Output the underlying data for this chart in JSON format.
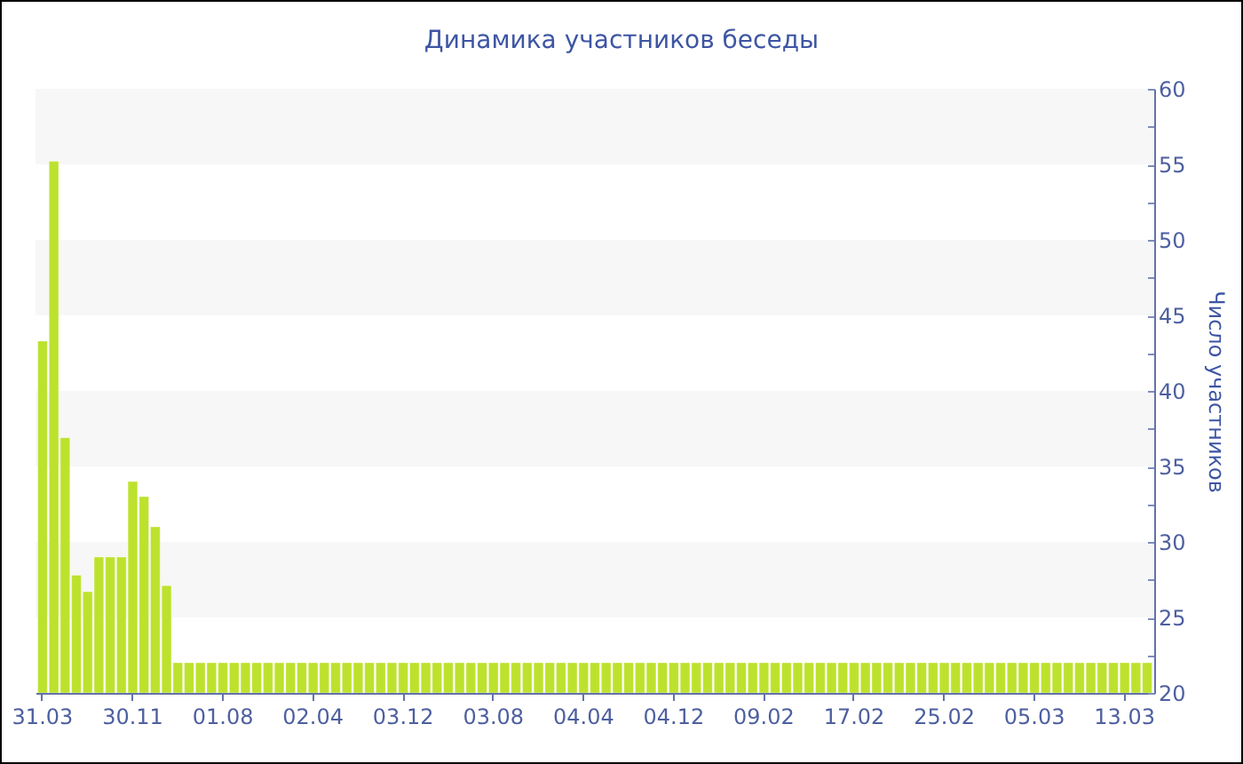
{
  "chart_data": {
    "type": "bar",
    "title": "Динамика участников беседы",
    "ylabel": "Число участников",
    "categories": [
      "31.03",
      null,
      null,
      null,
      null,
      null,
      null,
      null,
      "30.11",
      null,
      null,
      null,
      null,
      null,
      null,
      null,
      "01.08",
      null,
      null,
      null,
      null,
      null,
      null,
      null,
      "02.04",
      null,
      null,
      null,
      null,
      null,
      null,
      null,
      "03.12",
      null,
      null,
      null,
      null,
      null,
      null,
      null,
      "03.08",
      null,
      null,
      null,
      null,
      null,
      null,
      null,
      "04.04",
      null,
      null,
      null,
      null,
      null,
      null,
      null,
      "04.12",
      null,
      null,
      null,
      null,
      null,
      null,
      null,
      "09.02",
      null,
      null,
      null,
      null,
      null,
      null,
      null,
      "17.02",
      null,
      null,
      null,
      null,
      null,
      null,
      null,
      "25.02",
      null,
      null,
      null,
      null,
      null,
      null,
      null,
      "05.03",
      null,
      null,
      null,
      null,
      null,
      null,
      null,
      "13.03",
      null,
      null
    ],
    "values": [
      43.3,
      55.2,
      36.9,
      27.8,
      26.7,
      29,
      29,
      29,
      34,
      33,
      31,
      27.1,
      22,
      22,
      22,
      22,
      22,
      22,
      22,
      22,
      22,
      22,
      22,
      22,
      22,
      22,
      22,
      22,
      22,
      22,
      22,
      22,
      22,
      22,
      22,
      22,
      22,
      22,
      22,
      22,
      22,
      22,
      22,
      22,
      22,
      22,
      22,
      22,
      22,
      22,
      22,
      22,
      22,
      22,
      22,
      22,
      22,
      22,
      22,
      22,
      22,
      22,
      22,
      22,
      22,
      22,
      22,
      22,
      22,
      22,
      22,
      22,
      22,
      22,
      22,
      22,
      22,
      22,
      22,
      22,
      22,
      22,
      22,
      22,
      22,
      22,
      22,
      22,
      22,
      22,
      22,
      22,
      22,
      22,
      22,
      22,
      22,
      22,
      22
    ],
    "color": "#bde22d",
    "ylim": [
      20,
      60
    ],
    "yticks": [
      20,
      {
        "value": 22.5,
        "label": null
      },
      25,
      {
        "value": 27.5,
        "label": null
      },
      30,
      {
        "value": 32.5,
        "label": null
      },
      35,
      {
        "value": 37.5,
        "label": null
      },
      40,
      {
        "value": 42.5,
        "label": null
      },
      45,
      {
        "value": 47.5,
        "label": null
      },
      50,
      {
        "value": 52.5,
        "label": null
      },
      55,
      {
        "value": 57.5,
        "label": null
      },
      60
    ],
    "bands": [
      {
        "axis": "y",
        "from": 25,
        "to": 30,
        "color": "#f7f7f7"
      },
      {
        "axis": "y",
        "from": 35,
        "to": 40,
        "color": "#f7f7f7"
      },
      {
        "axis": "y",
        "from": 45,
        "to": 50,
        "color": "#f7f7f7"
      },
      {
        "axis": "y",
        "from": 55,
        "to": 60,
        "color": "#f7f7f7"
      }
    ]
  }
}
